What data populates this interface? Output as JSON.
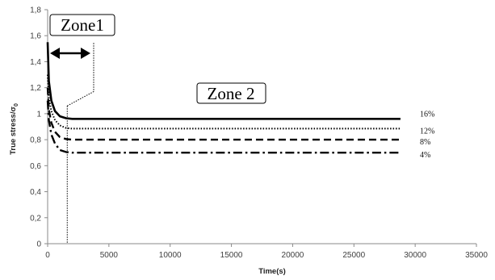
{
  "chart_data": {
    "type": "line",
    "xlabel": "Time(s)",
    "ylabel": "True stress/σ",
    "ylabel_subscript": "0",
    "xlim": [
      0,
      35000
    ],
    "ylim": [
      0,
      1.8
    ],
    "x_ticks": [
      0,
      5000,
      10000,
      15000,
      20000,
      25000,
      30000,
      35000
    ],
    "x_tick_labels": [
      "0",
      "5000",
      "10000",
      "15000",
      "20000",
      "25000",
      "30000",
      "35000"
    ],
    "y_ticks": [
      0,
      0.2,
      0.4,
      0.6,
      0.8,
      1.0,
      1.2,
      1.4,
      1.6,
      1.8
    ],
    "y_tick_labels": [
      "0",
      "0,2",
      "0,4",
      "0,6",
      "0,8",
      "1",
      "1,2",
      "1,4",
      "1,6",
      "1,8"
    ],
    "grid": false,
    "legend": "inline-right",
    "series": [
      {
        "name": "16%",
        "style": "solid",
        "x": [
          0,
          100,
          300,
          600,
          1000,
          1500,
          2000,
          28800
        ],
        "y": [
          1.55,
          1.25,
          1.1,
          1.02,
          0.98,
          0.965,
          0.96,
          0.96
        ]
      },
      {
        "name": "12%",
        "style": "dotted",
        "x": [
          0,
          100,
          300,
          600,
          1000,
          1500,
          2000,
          28800
        ],
        "y": [
          1.3,
          1.12,
          1.02,
          0.95,
          0.91,
          0.89,
          0.885,
          0.885
        ]
      },
      {
        "name": "8%",
        "style": "dashed",
        "x": [
          0,
          100,
          300,
          600,
          1000,
          1500,
          2000,
          28800
        ],
        "y": [
          1.2,
          1.03,
          0.93,
          0.86,
          0.82,
          0.805,
          0.8,
          0.8
        ]
      },
      {
        "name": "4%",
        "style": "dashdot",
        "x": [
          0,
          100,
          300,
          600,
          1000,
          1500,
          2000,
          28800
        ],
        "y": [
          1.1,
          0.95,
          0.84,
          0.77,
          0.72,
          0.705,
          0.7,
          0.7
        ]
      }
    ],
    "annotations": {
      "zone1_label": "Zone1",
      "zone2_label": "Zone 2",
      "zone_boundary_x": 1600
    }
  }
}
